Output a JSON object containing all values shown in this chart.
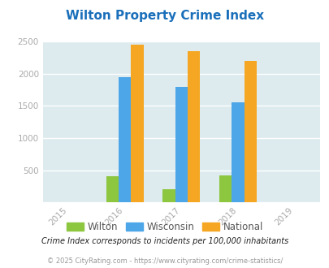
{
  "title": "Wilton Property Crime Index",
  "title_color": "#1a6fba",
  "years": [
    2015,
    2016,
    2017,
    2018,
    2019
  ],
  "bar_years": [
    2016,
    2017,
    2018
  ],
  "wilton": [
    400,
    200,
    420
  ],
  "wisconsin": [
    1950,
    1800,
    1550
  ],
  "national": [
    2450,
    2350,
    2200
  ],
  "wilton_color": "#8dc63f",
  "wisconsin_color": "#4da6e8",
  "national_color": "#f5a623",
  "bg_color": "#ddeaee",
  "ylim": [
    0,
    2500
  ],
  "yticks": [
    0,
    500,
    1000,
    1500,
    2000,
    2500
  ],
  "bar_width": 0.22,
  "legend_labels": [
    "Wilton",
    "Wisconsin",
    "National"
  ],
  "footnote1": "Crime Index corresponds to incidents per 100,000 inhabitants",
  "footnote2": "© 2025 CityRating.com - https://www.cityrating.com/crime-statistics/",
  "footnote1_color": "#222222",
  "footnote2_color": "#999999",
  "tick_label_color": "#aaaaaa",
  "grid_color": "#ffffff",
  "xlim": [
    2014.55,
    2019.45
  ]
}
